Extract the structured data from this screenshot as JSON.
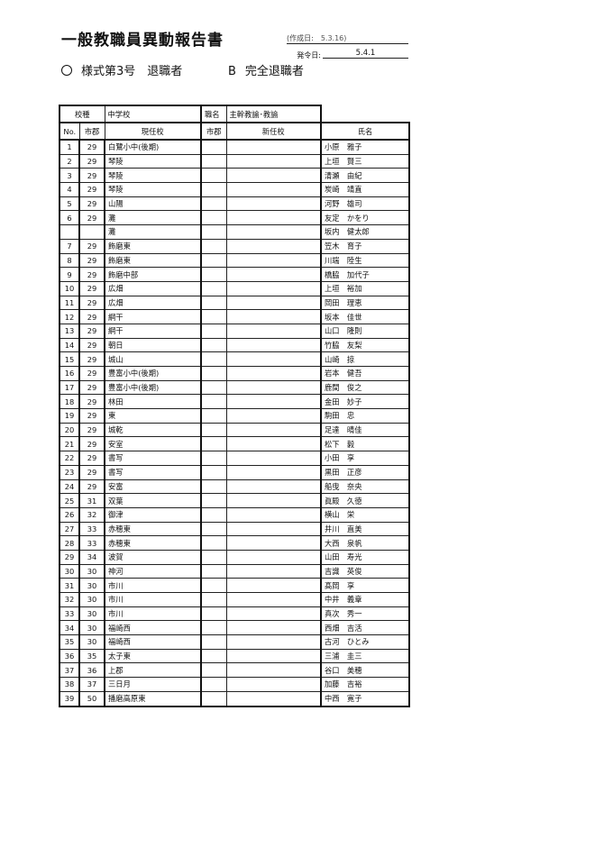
{
  "header": {
    "title": "一般教職員異動報告書",
    "created_label": "(作成日:",
    "created_value": "5.3.16)",
    "issued_label": "発令日:",
    "issued_value": "5.4.1",
    "form": "様式第3号　退職者",
    "category_letter": "B",
    "category": "完全退職者"
  },
  "table": {
    "school_type_label": "校種",
    "school_type_value": "中学校",
    "position_label": "職名",
    "position_value": "主幹教諭･教諭",
    "columns": [
      "No.",
      "市郡",
      "現任校",
      "市郡",
      "新任校",
      "氏名"
    ],
    "rows": [
      {
        "no": "1",
        "city": "29",
        "school": "白鷺小中(後期)",
        "name": "小原　雅子"
      },
      {
        "no": "2",
        "city": "29",
        "school": "琴陵",
        "name": "上垣　賢三"
      },
      {
        "no": "3",
        "city": "29",
        "school": "琴陵",
        "name": "清瀬　由紀"
      },
      {
        "no": "4",
        "city": "29",
        "school": "琴陵",
        "name": "炭崎　靖直"
      },
      {
        "no": "5",
        "city": "29",
        "school": "山陽",
        "name": "河野　雄司"
      },
      {
        "no": "6",
        "city": "29",
        "school": "灘",
        "name": "友定　かをり"
      },
      {
        "no": "",
        "city": "",
        "school": "灘",
        "name": "坂内　健太郎"
      },
      {
        "no": "7",
        "city": "29",
        "school": "飾磨東",
        "name": "笠木　育子"
      },
      {
        "no": "8",
        "city": "29",
        "school": "飾磨東",
        "name": "川端　陸生"
      },
      {
        "no": "9",
        "city": "29",
        "school": "飾磨中部",
        "name": "橋脇　加代子"
      },
      {
        "no": "10",
        "city": "29",
        "school": "広畑",
        "name": "上垣　裕加"
      },
      {
        "no": "11",
        "city": "29",
        "school": "広畑",
        "name": "岡田　理恵"
      },
      {
        "no": "12",
        "city": "29",
        "school": "網干",
        "name": "坂本　佳世"
      },
      {
        "no": "13",
        "city": "29",
        "school": "網干",
        "name": "山口　隆則"
      },
      {
        "no": "14",
        "city": "29",
        "school": "朝日",
        "name": "竹脇　友梨"
      },
      {
        "no": "15",
        "city": "29",
        "school": "城山",
        "name": "山崎　掠"
      },
      {
        "no": "16",
        "city": "29",
        "school": "豊富小中(後期)",
        "name": "岩本　健吾"
      },
      {
        "no": "17",
        "city": "29",
        "school": "豊富小中(後期)",
        "name": "鹿間　俊之"
      },
      {
        "no": "18",
        "city": "29",
        "school": "林田",
        "name": "金田　妙子"
      },
      {
        "no": "19",
        "city": "29",
        "school": "東",
        "name": "駒田　忠"
      },
      {
        "no": "20",
        "city": "29",
        "school": "城乾",
        "name": "足達　晴佳"
      },
      {
        "no": "21",
        "city": "29",
        "school": "安室",
        "name": "松下　毅"
      },
      {
        "no": "22",
        "city": "29",
        "school": "書写",
        "name": "小田　享"
      },
      {
        "no": "23",
        "city": "29",
        "school": "書写",
        "name": "黒田　正彦"
      },
      {
        "no": "24",
        "city": "29",
        "school": "安富",
        "name": "船曳　奈央"
      },
      {
        "no": "25",
        "city": "31",
        "school": "双葉",
        "name": "眞殿　久徳"
      },
      {
        "no": "26",
        "city": "32",
        "school": "御津",
        "name": "横山　栄"
      },
      {
        "no": "27",
        "city": "33",
        "school": "赤穂東",
        "name": "井川　直美"
      },
      {
        "no": "28",
        "city": "33",
        "school": "赤穂東",
        "name": "大西　泉帆"
      },
      {
        "no": "29",
        "city": "34",
        "school": "波賀",
        "name": "山田　寿光"
      },
      {
        "no": "30",
        "city": "30",
        "school": "神河",
        "name": "吉識　英俊"
      },
      {
        "no": "31",
        "city": "30",
        "school": "市川",
        "name": "髙岡　享"
      },
      {
        "no": "32",
        "city": "30",
        "school": "市川",
        "name": "中井　義章"
      },
      {
        "no": "33",
        "city": "30",
        "school": "市川",
        "name": "真次　秀一"
      },
      {
        "no": "34",
        "city": "30",
        "school": "福崎西",
        "name": "西畑　吉活"
      },
      {
        "no": "35",
        "city": "30",
        "school": "福崎西",
        "name": "古河　ひとみ"
      },
      {
        "no": "36",
        "city": "35",
        "school": "太子東",
        "name": "三浦　圭三"
      },
      {
        "no": "37",
        "city": "36",
        "school": "上郡",
        "name": "谷口　美穂"
      },
      {
        "no": "38",
        "city": "37",
        "school": "三日月",
        "name": "加藤　吉裕"
      },
      {
        "no": "39",
        "city": "50",
        "school": "播磨高原東",
        "name": "中西　寛子"
      }
    ]
  }
}
